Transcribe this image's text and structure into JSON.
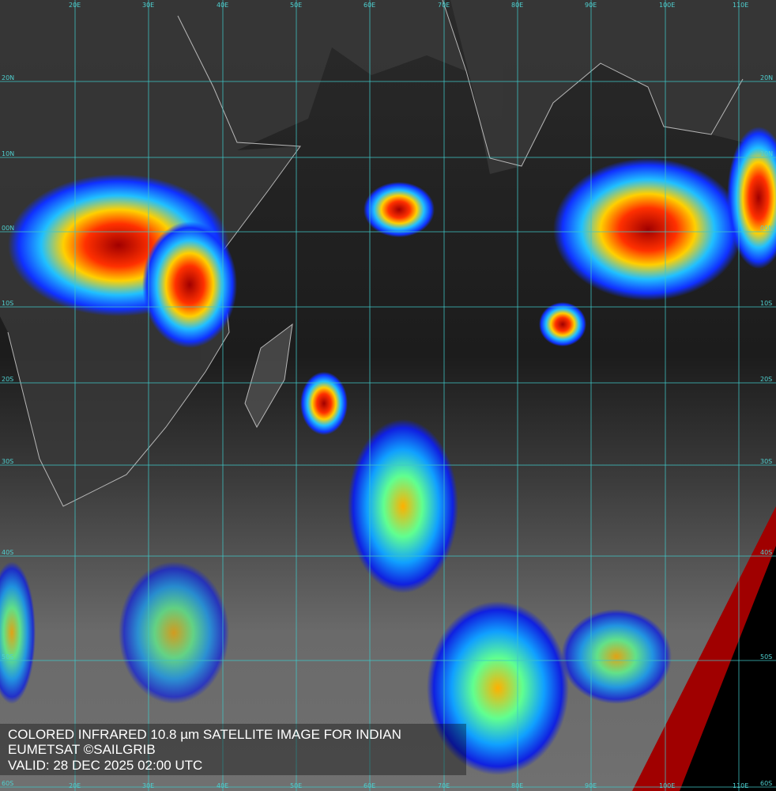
{
  "map": {
    "longitude_labels": [
      "20E",
      "30E",
      "40E",
      "50E",
      "60E",
      "70E",
      "80E",
      "90E",
      "100E",
      "110E"
    ],
    "latitude_labels": [
      "20N",
      "10N",
      "00N",
      "10S",
      "20S",
      "30S",
      "40S",
      "50S",
      "60S"
    ],
    "caption": [
      "COLORED INFRARED 10.8 µm SATELLITE IMAGE FOR INDIAN",
      "EUMETSAT ©SAILGRIB",
      "VALID:  28 DEC 2025 02:00 UTC"
    ]
  }
}
